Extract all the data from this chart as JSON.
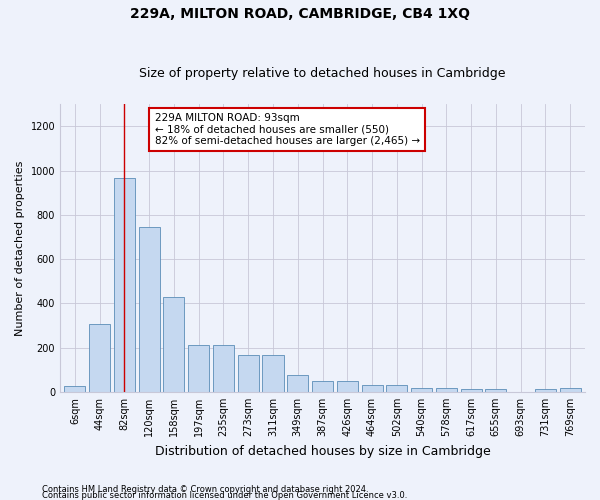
{
  "title": "229A, MILTON ROAD, CAMBRIDGE, CB4 1XQ",
  "subtitle": "Size of property relative to detached houses in Cambridge",
  "xlabel": "Distribution of detached houses by size in Cambridge",
  "ylabel": "Number of detached properties",
  "footnote1": "Contains HM Land Registry data © Crown copyright and database right 2024.",
  "footnote2": "Contains public sector information licensed under the Open Government Licence v3.0.",
  "bar_labels": [
    "6sqm",
    "44sqm",
    "82sqm",
    "120sqm",
    "158sqm",
    "197sqm",
    "235sqm",
    "273sqm",
    "311sqm",
    "349sqm",
    "387sqm",
    "426sqm",
    "464sqm",
    "502sqm",
    "540sqm",
    "578sqm",
    "617sqm",
    "655sqm",
    "693sqm",
    "731sqm",
    "769sqm"
  ],
  "bar_values": [
    25,
    305,
    965,
    745,
    430,
    210,
    210,
    165,
    165,
    75,
    48,
    48,
    30,
    30,
    18,
    18,
    15,
    15,
    0,
    15,
    18
  ],
  "bar_color": "#c5d8f0",
  "bar_edge_color": "#5b8db8",
  "vline_x": 2.0,
  "vline_color": "#cc0000",
  "annotation_text": "229A MILTON ROAD: 93sqm\n← 18% of detached houses are smaller (550)\n82% of semi-detached houses are larger (2,465) →",
  "annotation_box_facecolor": "#ffffff",
  "annotation_box_edgecolor": "#cc0000",
  "ylim": [
    0,
    1300
  ],
  "yticks": [
    0,
    200,
    400,
    600,
    800,
    1000,
    1200
  ],
  "grid_color": "#c8c8d8",
  "bg_color": "#eef2fb",
  "title_fontsize": 10,
  "subtitle_fontsize": 9,
  "xlabel_fontsize": 9,
  "ylabel_fontsize": 8,
  "tick_fontsize": 7,
  "annotation_fontsize": 7.5,
  "footnote_fontsize": 6
}
